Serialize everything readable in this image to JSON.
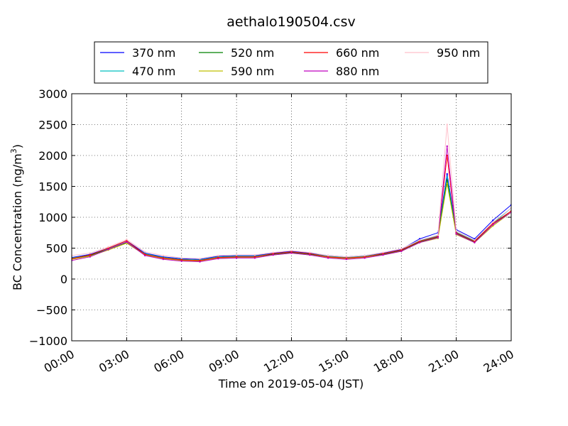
{
  "chart_data": {
    "type": "line",
    "title": "aethalo190504.csv",
    "xlabel": "Time on 2019-05-04 (JST)",
    "ylabel": "BC Concentration (ng/m³)",
    "ylabel_main": "BC Concentration (ng/m",
    "ylabel_sup": "3",
    "ylabel_end": ")",
    "xlim": [
      "00:00",
      "24:00"
    ],
    "ylim": [
      -1000,
      3000
    ],
    "xticks": [
      "00:00",
      "03:00",
      "06:00",
      "09:00",
      "12:00",
      "15:00",
      "18:00",
      "21:00",
      "24:00"
    ],
    "yticks": [
      "−1000",
      "−500",
      "0",
      "500",
      "1000",
      "1500",
      "2000",
      "2500",
      "3000"
    ],
    "grid": true,
    "legend_position": "top",
    "series": [
      {
        "name": "370 nm",
        "color": "#0000ff",
        "x": [
          "00:00",
          "01:00",
          "02:00",
          "03:00",
          "04:00",
          "05:00",
          "06:00",
          "07:00",
          "08:00",
          "09:00",
          "10:00",
          "11:00",
          "12:00",
          "13:00",
          "14:00",
          "15:00",
          "16:00",
          "17:00",
          "18:00",
          "19:00",
          "20:00",
          "20:30",
          "21:00",
          "22:00",
          "23:00",
          "24:00"
        ],
        "values": [
          350,
          400,
          500,
          620,
          420,
          360,
          330,
          320,
          370,
          380,
          380,
          420,
          450,
          420,
          380,
          360,
          380,
          420,
          480,
          650,
          750,
          1700,
          800,
          650,
          950,
          1200
        ]
      },
      {
        "name": "470 nm",
        "color": "#00bfbf",
        "x": [
          "00:00",
          "01:00",
          "02:00",
          "03:00",
          "04:00",
          "05:00",
          "06:00",
          "07:00",
          "08:00",
          "09:00",
          "10:00",
          "11:00",
          "12:00",
          "13:00",
          "14:00",
          "15:00",
          "16:00",
          "17:00",
          "18:00",
          "19:00",
          "20:00",
          "20:30",
          "21:00",
          "22:00",
          "23:00",
          "24:00"
        ],
        "values": [
          340,
          390,
          490,
          600,
          410,
          350,
          320,
          310,
          360,
          370,
          370,
          410,
          440,
          410,
          370,
          350,
          370,
          410,
          470,
          620,
          700,
          1650,
          760,
          620,
          900,
          1150
        ]
      },
      {
        "name": "520 nm",
        "color": "#008000",
        "x": [
          "00:00",
          "01:00",
          "02:00",
          "03:00",
          "04:00",
          "05:00",
          "06:00",
          "07:00",
          "08:00",
          "09:00",
          "10:00",
          "11:00",
          "12:00",
          "13:00",
          "14:00",
          "15:00",
          "16:00",
          "17:00",
          "18:00",
          "19:00",
          "20:00",
          "20:30",
          "21:00",
          "22:00",
          "23:00",
          "24:00"
        ],
        "values": [
          330,
          380,
          480,
          590,
          400,
          340,
          310,
          300,
          350,
          360,
          360,
          400,
          430,
          400,
          360,
          340,
          360,
          400,
          460,
          600,
          680,
          1600,
          740,
          600,
          880,
          1100
        ]
      },
      {
        "name": "590 nm",
        "color": "#bfbf00",
        "x": [
          "00:00",
          "01:00",
          "02:00",
          "03:00",
          "04:00",
          "05:00",
          "06:00",
          "07:00",
          "08:00",
          "09:00",
          "10:00",
          "11:00",
          "12:00",
          "13:00",
          "14:00",
          "15:00",
          "16:00",
          "17:00",
          "18:00",
          "19:00",
          "20:00",
          "20:30",
          "21:00",
          "22:00",
          "23:00",
          "24:00"
        ],
        "values": [
          320,
          370,
          470,
          580,
          390,
          330,
          300,
          290,
          340,
          350,
          350,
          390,
          420,
          390,
          350,
          330,
          350,
          390,
          450,
          590,
          660,
          1550,
          720,
          590,
          860,
          1080
        ]
      },
      {
        "name": "660 nm",
        "color": "#ff0000",
        "x": [
          "00:00",
          "01:00",
          "02:00",
          "03:00",
          "04:00",
          "05:00",
          "06:00",
          "07:00",
          "08:00",
          "09:00",
          "10:00",
          "11:00",
          "12:00",
          "13:00",
          "14:00",
          "15:00",
          "16:00",
          "17:00",
          "18:00",
          "19:00",
          "20:00",
          "20:30",
          "21:00",
          "22:00",
          "23:00",
          "24:00"
        ],
        "values": [
          330,
          390,
          500,
          620,
          400,
          340,
          310,
          300,
          350,
          360,
          360,
          410,
          440,
          410,
          360,
          340,
          360,
          410,
          470,
          610,
          690,
          2000,
          750,
          610,
          900,
          1100
        ]
      },
      {
        "name": "880 nm",
        "color": "#bf00bf",
        "x": [
          "00:00",
          "01:00",
          "02:00",
          "03:00",
          "04:00",
          "05:00",
          "06:00",
          "07:00",
          "08:00",
          "09:00",
          "10:00",
          "11:00",
          "12:00",
          "13:00",
          "14:00",
          "15:00",
          "16:00",
          "17:00",
          "18:00",
          "19:00",
          "20:00",
          "20:30",
          "21:00",
          "22:00",
          "23:00",
          "24:00"
        ],
        "values": [
          300,
          360,
          480,
          600,
          380,
          320,
          290,
          280,
          330,
          340,
          340,
          390,
          420,
          390,
          340,
          320,
          340,
          390,
          450,
          590,
          670,
          2150,
          730,
          590,
          880,
          1080
        ]
      },
      {
        "name": "950 nm",
        "color": "#ffc0cb",
        "x": [
          "00:00",
          "01:00",
          "02:00",
          "03:00",
          "04:00",
          "05:00",
          "06:00",
          "07:00",
          "08:00",
          "09:00",
          "10:00",
          "11:00",
          "12:00",
          "13:00",
          "14:00",
          "15:00",
          "16:00",
          "17:00",
          "18:00",
          "19:00",
          "20:00",
          "20:30",
          "21:00",
          "22:00",
          "23:00",
          "24:00"
        ],
        "values": [
          380,
          420,
          520,
          640,
          440,
          380,
          340,
          330,
          380,
          390,
          390,
          430,
          460,
          430,
          380,
          360,
          380,
          430,
          490,
          630,
          710,
          2500,
          780,
          630,
          920,
          1150
        ]
      }
    ]
  }
}
